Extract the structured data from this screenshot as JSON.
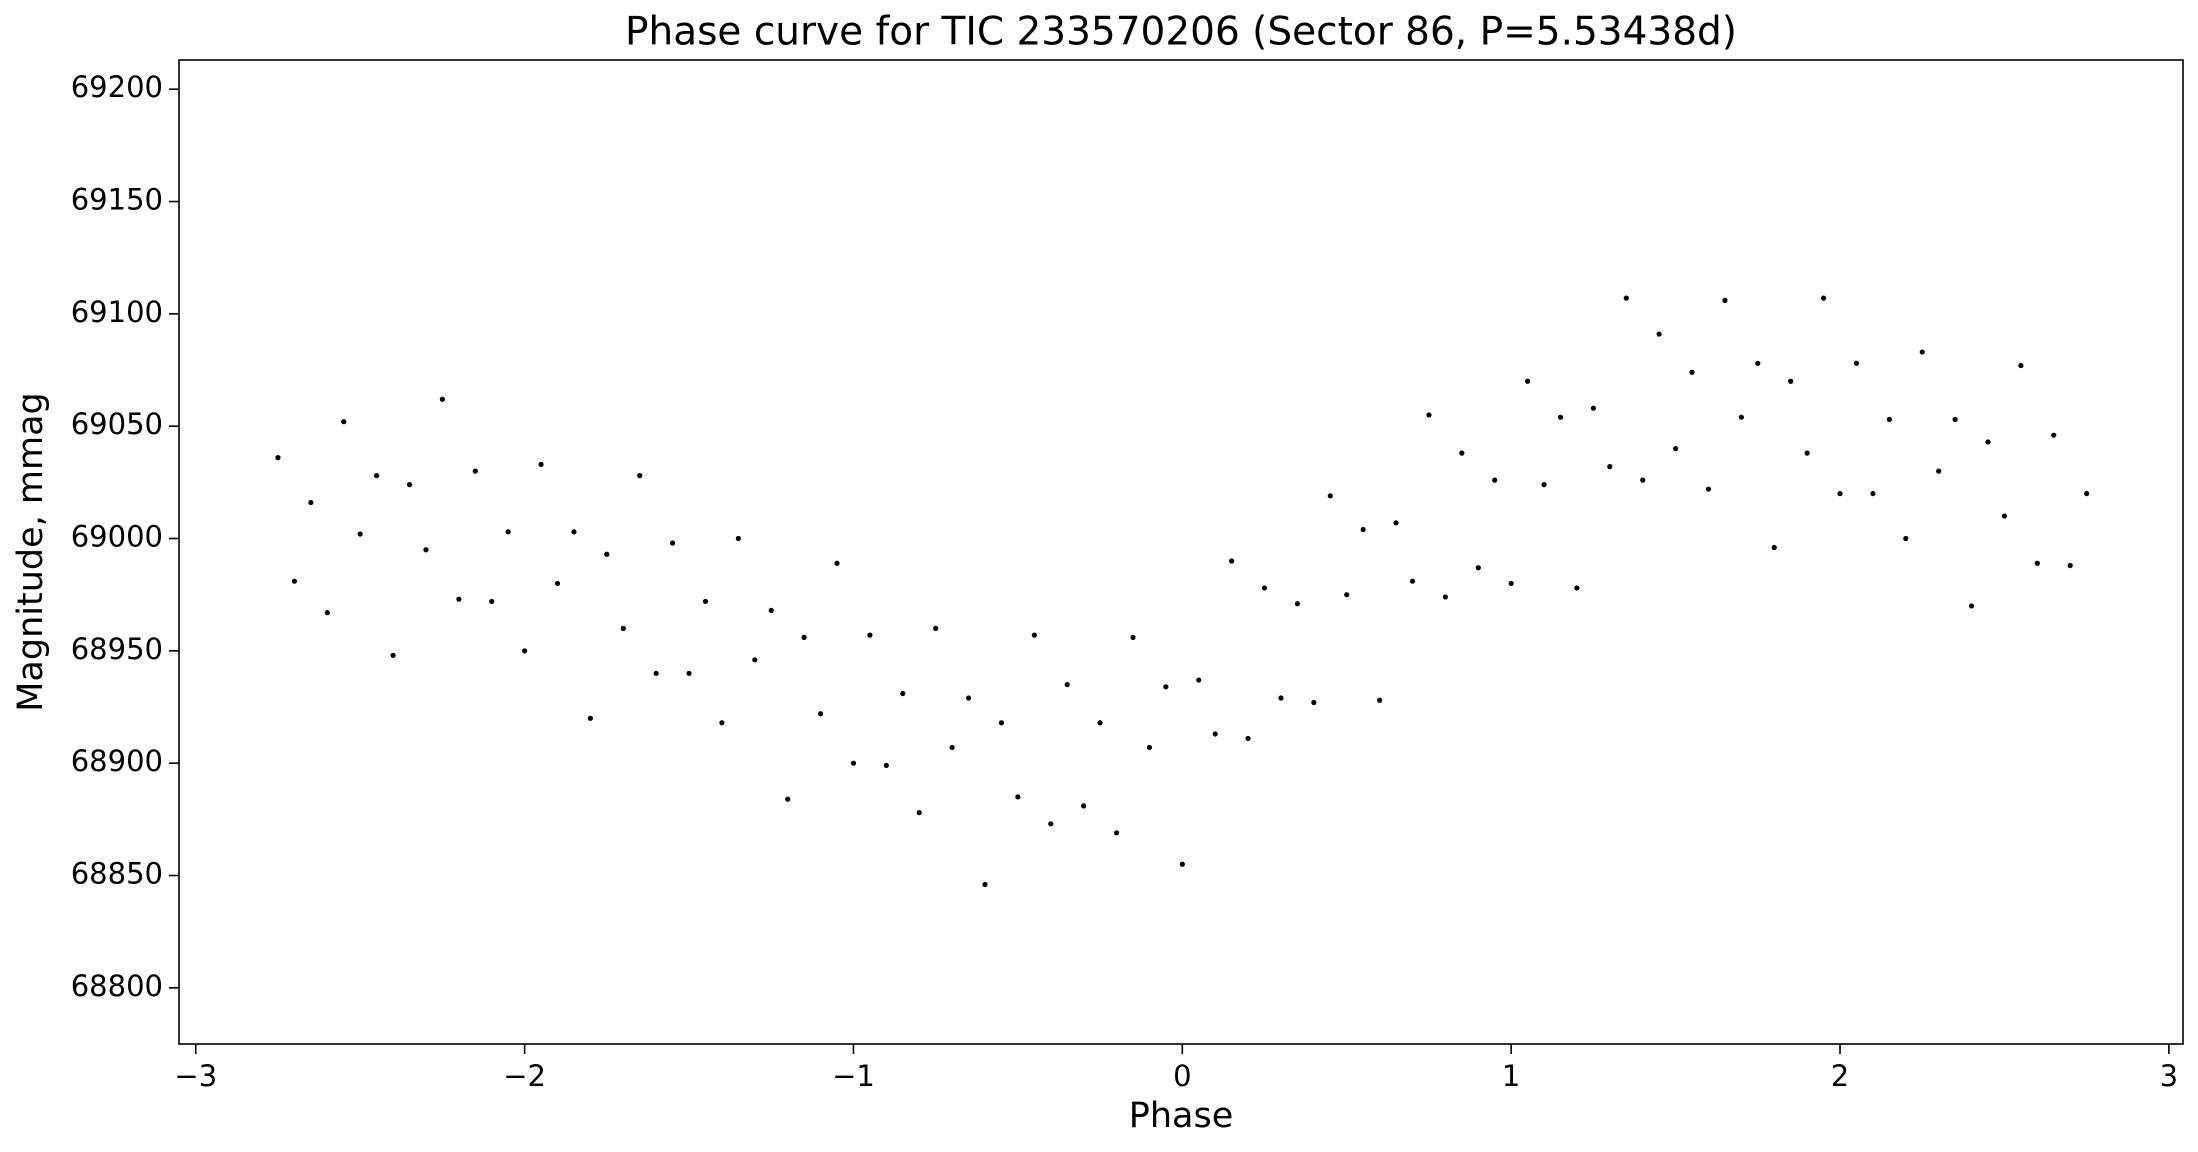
{
  "chart_data": {
    "type": "scatter",
    "title": "Phase curve for TIC 233570206 (Sector 86, P=5.53438d)",
    "x_label": "Phase",
    "y_label": "Magnitude, mmag",
    "xlim": [
      -3.051,
      3.043
    ],
    "ylim": [
      68775,
      69213
    ],
    "xticks": [
      {
        "value": -3,
        "label": "−3"
      },
      {
        "value": -2,
        "label": "−2"
      },
      {
        "value": -1,
        "label": "−1"
      },
      0,
      1,
      2,
      3
    ],
    "yticks": [
      68800,
      68850,
      68900,
      68950,
      69000,
      69050,
      69100,
      69150,
      69200
    ],
    "series": [
      {
        "color": "#000000",
        "x": [
          -2.75,
          -2.7,
          -2.65,
          -2.6,
          -2.55,
          -2.5,
          -2.45,
          -2.4,
          -2.35,
          -2.3,
          -2.25,
          -2.2,
          -2.15,
          -2.1,
          -2.05,
          -2,
          -1.95,
          -1.9,
          -1.85,
          -1.8,
          -1.75,
          -1.7,
          -1.65,
          -1.6,
          -1.55,
          -1.5,
          -1.45,
          -1.4,
          -1.35,
          -1.3,
          -1.25,
          -1.2,
          -1.15,
          -1.1,
          -1.05,
          -1,
          -0.95,
          -0.9,
          -0.85,
          -0.8,
          -0.75,
          -0.7,
          -0.65,
          -0.6,
          -0.55,
          -0.5,
          -0.45,
          -0.4,
          -0.35,
          -0.3,
          -0.25,
          -0.2,
          -0.15,
          -0.1,
          -0.05,
          0,
          0.05,
          0.1,
          0.15,
          0.2,
          0.25,
          0.3,
          0.35,
          0.4,
          0.45,
          0.5,
          0.55,
          0.6,
          0.65,
          0.7,
          0.75,
          0.8,
          0.85,
          0.9,
          0.95,
          1,
          1.05,
          1.1,
          1.15,
          1.2,
          1.25,
          1.3,
          1.35,
          1.4,
          1.45,
          1.5,
          1.55,
          1.6,
          1.65,
          1.7,
          1.75,
          1.8,
          1.85,
          1.9,
          1.95,
          2,
          2.05,
          2.1,
          2.15,
          2.2,
          2.25,
          2.3,
          2.35,
          2.4,
          2.45,
          2.5,
          2.55,
          2.6,
          2.65,
          2.7,
          2.75
        ],
        "values": [
          69036,
          68981,
          69016,
          68967,
          69052,
          69002,
          69028,
          68948,
          69024,
          68995,
          69062,
          68973,
          69030,
          68972,
          69003,
          68950,
          69033,
          68980,
          69003,
          68920,
          68993,
          68960,
          69028,
          68940,
          68998,
          68940,
          68972,
          68918,
          69000,
          68946,
          68968,
          68884,
          68956,
          68922,
          68989,
          68900,
          68957,
          68899,
          68931,
          68878,
          68960,
          68907,
          68929,
          68846,
          68918,
          68885,
          68957,
          68873,
          68935,
          68881,
          68918,
          68869,
          68956,
          68907,
          68934,
          68855,
          68937,
          68913,
          68990,
          68911,
          68978,
          68929,
          68971,
          68927,
          69019,
          68975,
          69004,
          68928,
          69007,
          68981,
          69055,
          68974,
          69038,
          68987,
          69026,
          68980,
          69070,
          69024,
          69054,
          68978,
          69058,
          69032,
          69107,
          69026,
          69091,
          69040,
          69074,
          69022,
          69106,
          69054,
          69078,
          68996,
          69070,
          69038,
          69107,
          69020,
          69078,
          69020,
          69053,
          69000,
          69083,
          69030,
          69053,
          68970,
          69043,
          69010,
          69077,
          68989,
          69046,
          68988,
          69020
        ]
      }
    ]
  }
}
